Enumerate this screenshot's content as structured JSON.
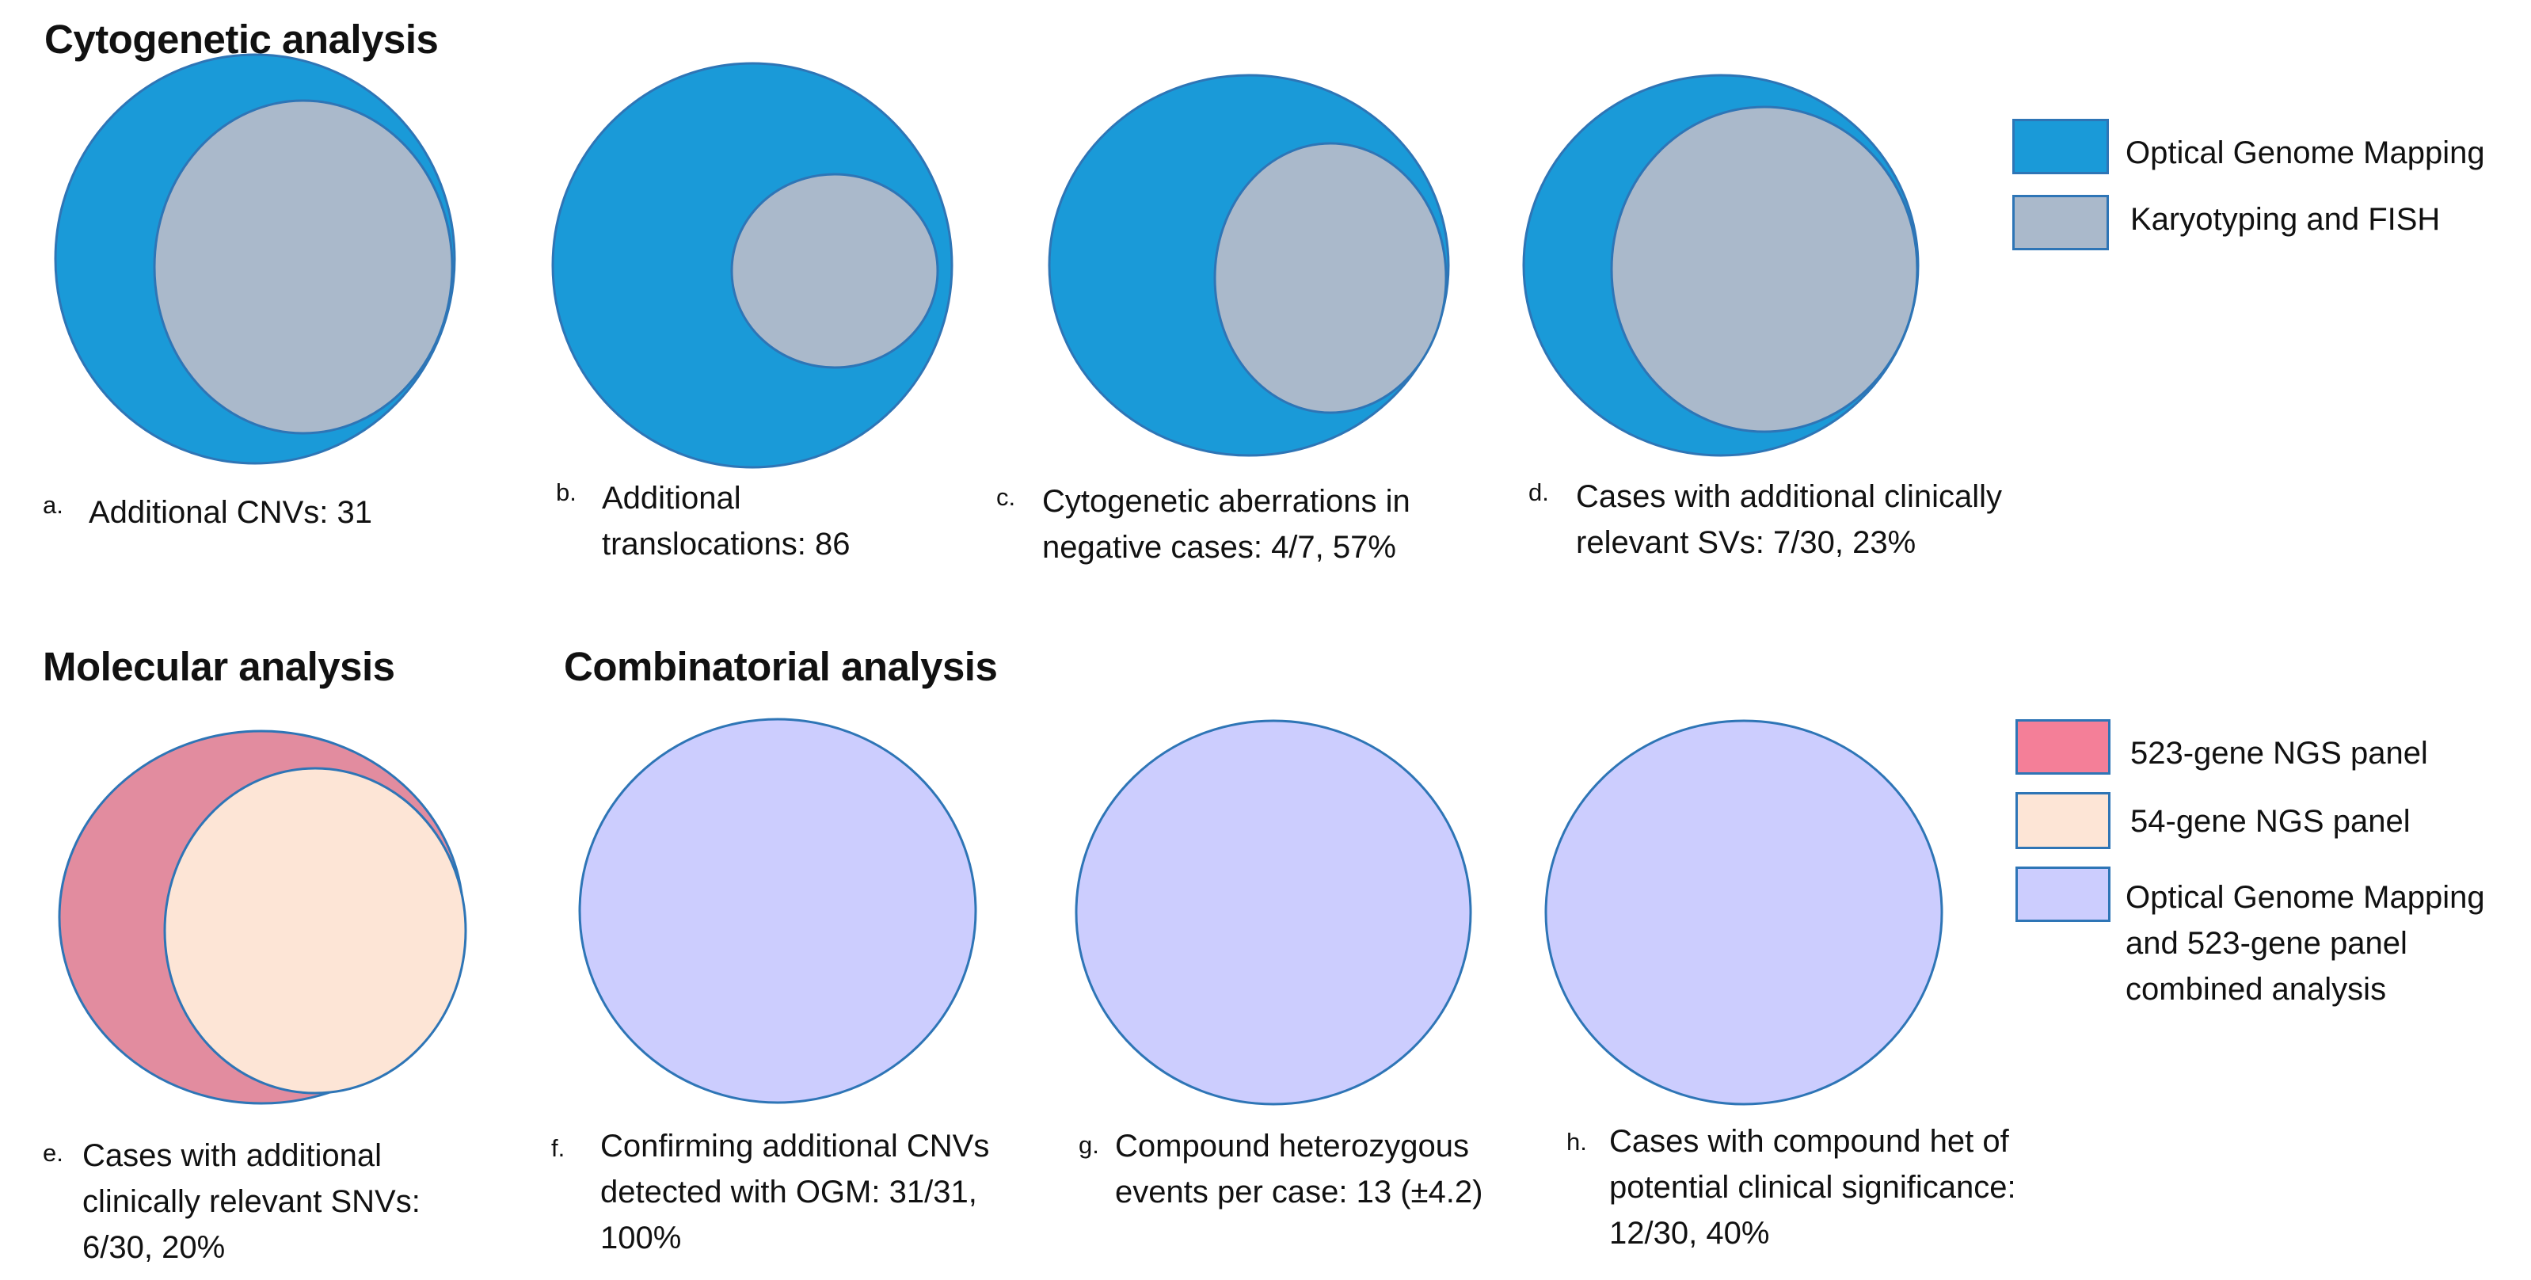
{
  "headings": {
    "cytogenetic": "Cytogenetic analysis",
    "molecular": "Molecular analysis",
    "combinatorial": "Combinatorial analysis"
  },
  "colors": {
    "ogm_blue": "#1a9ad8",
    "karyo_grey": "#aab9cb",
    "ngs523_pink": "#e28c9f",
    "ngs523_swatch": "#f47f98",
    "ngs54_peach": "#fde5d6",
    "combined_lavender": "#cccdfe",
    "outline": "#2e75b6"
  },
  "legend_top": {
    "items": [
      {
        "label": "Optical Genome Mapping",
        "color": "#1a9ad8"
      },
      {
        "label": "Karyotyping and FISH",
        "color": "#aab9cb"
      }
    ]
  },
  "legend_bottom": {
    "items": [
      {
        "label": "523-gene NGS panel",
        "color": "#f47f98"
      },
      {
        "label": "54-gene NGS panel",
        "color": "#fde5d6"
      },
      {
        "label_lines": [
          "Optical Genome Mapping",
          "and 523-gene panel",
          "combined analysis"
        ],
        "color": "#cccdfe"
      }
    ]
  },
  "panels": [
    {
      "letter": "a.",
      "caption": [
        "Additional CNVs: 31"
      ]
    },
    {
      "letter": "b.",
      "caption": [
        "Additional",
        "translocations: 86"
      ]
    },
    {
      "letter": "c.",
      "caption": [
        "Cytogenetic aberrations in",
        "negative cases: 4/7, 57%"
      ]
    },
    {
      "letter": "d.",
      "caption": [
        "Cases with additional clinically",
        "relevant SVs: 7/30, 23%"
      ]
    },
    {
      "letter": "e.",
      "caption": [
        "Cases with additional",
        "clinically relevant SNVs:",
        "6/30, 20%"
      ]
    },
    {
      "letter": "f.",
      "caption": [
        "Confirming additional CNVs",
        "detected with OGM: 31/31,",
        "100%"
      ]
    },
    {
      "letter": "g.",
      "caption": [
        "Compound heterozygous",
        "events per case: 13 (±4.2)"
      ]
    },
    {
      "letter": "h.",
      "caption": [
        "Cases with compound het of",
        "potential clinical significance:",
        "12/30, 40%"
      ]
    }
  ]
}
